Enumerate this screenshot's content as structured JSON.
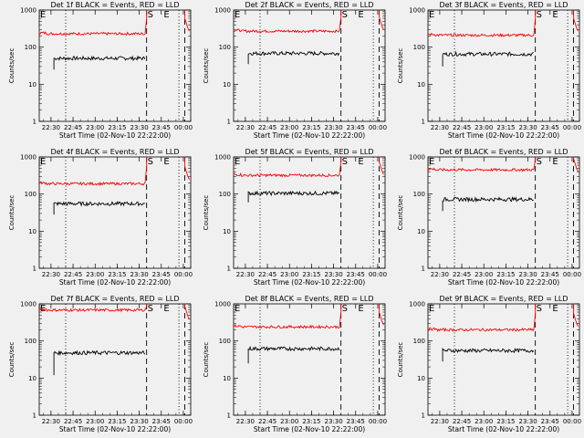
{
  "page": {
    "background": "#f0f0f0"
  },
  "style": {
    "events_color": "#000000",
    "lld_color": "#ff0000"
  },
  "axes_common": {
    "ylabel": "Counts/sec",
    "xlabel": "Start Time (02-Nov-10 22:22:00)",
    "xticks": [
      "22:30",
      "22:45",
      "23:00",
      "23:15",
      "23:30",
      "23:45",
      "00:00"
    ],
    "yticks": [
      "1",
      "10",
      "100",
      "1000"
    ],
    "yscale": "log",
    "ylim": [
      1,
      1000
    ],
    "xlim": [
      "22:22",
      "00:05"
    ],
    "markers": {
      "dotted": [
        "22:40",
        "23:57"
      ],
      "dashed": [
        "23:35",
        "00:01"
      ],
      "S_label": "S",
      "S_at": "23:35",
      "E_label": "E",
      "E_at": [
        "22:22",
        "23:46"
      ]
    }
  },
  "chart_data": [
    {
      "type": "line",
      "title": "Det 1f BLACK = Events, RED = LLD",
      "series": [
        {
          "name": "Events",
          "color": "#000000",
          "start": "22:32",
          "level": 50,
          "first": 25
        },
        {
          "name": "LLD",
          "color": "#ff0000",
          "start": "22:22",
          "level": 230,
          "tail": 600
        }
      ]
    },
    {
      "type": "line",
      "title": "Det 2f BLACK = Events, RED = LLD",
      "series": [
        {
          "name": "Events",
          "color": "#000000",
          "start": "22:32",
          "level": 68,
          "first": 35
        },
        {
          "name": "LLD",
          "color": "#ff0000",
          "start": "22:22",
          "level": 270,
          "tail": 650
        }
      ]
    },
    {
      "type": "line",
      "title": "Det 3f BLACK = Events, RED = LLD",
      "series": [
        {
          "name": "Events",
          "color": "#000000",
          "start": "22:32",
          "level": 65,
          "first": 30
        },
        {
          "name": "LLD",
          "color": "#ff0000",
          "start": "22:22",
          "level": 210,
          "tail": 600
        }
      ]
    },
    {
      "type": "line",
      "title": "Det 4f BLACK = Events, RED = LLD",
      "series": [
        {
          "name": "Events",
          "color": "#000000",
          "start": "22:32",
          "level": 55,
          "first": 28
        },
        {
          "name": "LLD",
          "color": "#ff0000",
          "start": "22:22",
          "level": 190,
          "tail": 550
        }
      ]
    },
    {
      "type": "line",
      "title": "Det 5f BLACK = Events, RED = LLD",
      "series": [
        {
          "name": "Events",
          "color": "#000000",
          "start": "22:32",
          "level": 105,
          "first": 60
        },
        {
          "name": "LLD",
          "color": "#ff0000",
          "start": "22:22",
          "level": 320,
          "tail": 750
        }
      ]
    },
    {
      "type": "line",
      "title": "Det 6f BLACK = Events, RED = LLD",
      "series": [
        {
          "name": "Events",
          "color": "#000000",
          "start": "22:32",
          "level": 72,
          "first": 35
        },
        {
          "name": "LLD",
          "color": "#ff0000",
          "start": "22:22",
          "level": 450,
          "tail": 900
        }
      ]
    },
    {
      "type": "line",
      "title": "Det 7f BLACK = Events, RED = LLD",
      "series": [
        {
          "name": "Events",
          "color": "#000000",
          "start": "22:32",
          "level": 48,
          "first": 12
        },
        {
          "name": "LLD",
          "color": "#ff0000",
          "start": "22:22",
          "level": 680,
          "tail": 850
        }
      ]
    },
    {
      "type": "line",
      "title": "Det 8f BLACK = Events, RED = LLD",
      "series": [
        {
          "name": "Events",
          "color": "#000000",
          "start": "22:32",
          "level": 62,
          "first": 25
        },
        {
          "name": "LLD",
          "color": "#ff0000",
          "start": "22:22",
          "level": 240,
          "tail": 600
        }
      ]
    },
    {
      "type": "line",
      "title": "Det 9f BLACK = Events, RED = LLD",
      "series": [
        {
          "name": "Events",
          "color": "#000000",
          "start": "22:32",
          "level": 55,
          "first": 28
        },
        {
          "name": "LLD",
          "color": "#ff0000",
          "start": "22:22",
          "level": 200,
          "tail": 550
        }
      ]
    }
  ]
}
